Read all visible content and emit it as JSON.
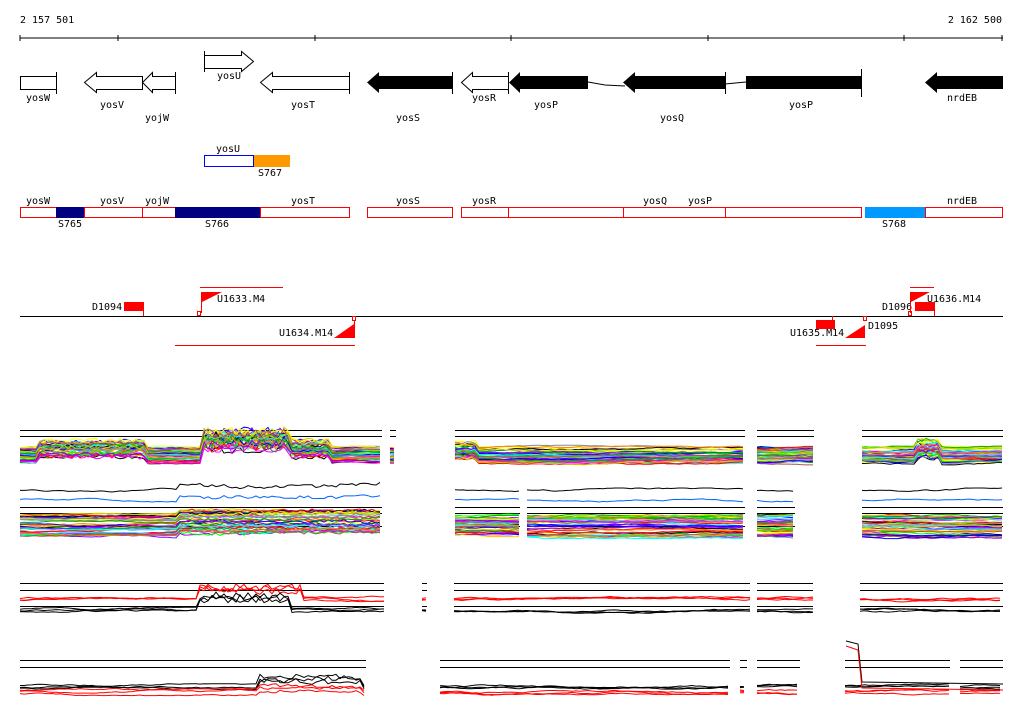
{
  "ruler": {
    "start": "2 157 501",
    "end": "2 162 500"
  },
  "genes": {
    "yosW": "yosW",
    "yosV": "yosV",
    "yojW": "yojW",
    "yosU": "yosU",
    "yosT": "yosT",
    "yosS": "yosS",
    "yosR": "yosR",
    "yosP1": "yosP",
    "yosQ": "yosQ",
    "yosP2": "yosP",
    "nrdEB": "nrdEB"
  },
  "segments": {
    "S765": "S765",
    "S766": "S766",
    "S767": "S767",
    "S768": "S768"
  },
  "transcripts": {
    "yosW": "yosW",
    "yosV": "yosV",
    "yojW": "yojW",
    "yosT": "yosT",
    "yosS": "yosS",
    "yosR": "yosR",
    "yosQ": "yosQ",
    "yosP": "yosP",
    "nrdEB": "nrdEB",
    "yosU": "yosU"
  },
  "regulation": {
    "D1094": "D1094",
    "U1633": "U1633.M4",
    "U1634": "U1634.M14",
    "U1635": "U1635.M14",
    "D1095": "D1095",
    "D1096": "D1096",
    "U1636": "U1636.M14"
  },
  "colors": {
    "orange": "#ff9900",
    "navy": "#000080",
    "lightblue": "#0099ff",
    "red": "#ff0000",
    "blue": "#0000ff"
  }
}
